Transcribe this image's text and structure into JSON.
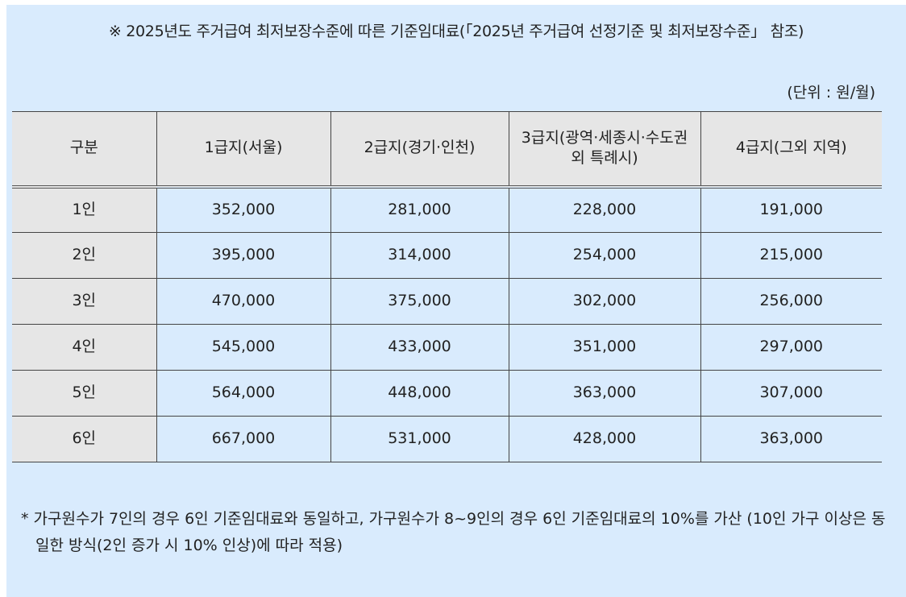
{
  "title": "※ 2025년도 주거급여 최저보장수준에 따른 기준임대료(「2025년 주거급여 선정기준 및 최저보장수준」 참조)",
  "unit": "(단위 : 원/월)",
  "table": {
    "headers": [
      "구분",
      "1급지(서울)",
      "2급지(경기·인천)",
      "3급지(광역·세종시·수도권 외 특례시)",
      "4급지(그외 지역)"
    ],
    "rows": [
      [
        "1인",
        "352,000",
        "281,000",
        "228,000",
        "191,000"
      ],
      [
        "2인",
        "395,000",
        "314,000",
        "254,000",
        "215,000"
      ],
      [
        "3인",
        "470,000",
        "375,000",
        "302,000",
        "256,000"
      ],
      [
        "4인",
        "545,000",
        "433,000",
        "351,000",
        "297,000"
      ],
      [
        "5인",
        "564,000",
        "448,000",
        "363,000",
        "307,000"
      ],
      [
        "6인",
        "667,000",
        "531,000",
        "428,000",
        "363,000"
      ]
    ]
  },
  "note": "* 가구원수가 7인의 경우 6인 기준임대료와 동일하고, 가구원수가 8~9인의 경우 6인 기준임대료의 10%를 가산 (10인 가구 이상은 동일한 방식(2인 증가 시 10% 인상)에 따라 적용)"
}
